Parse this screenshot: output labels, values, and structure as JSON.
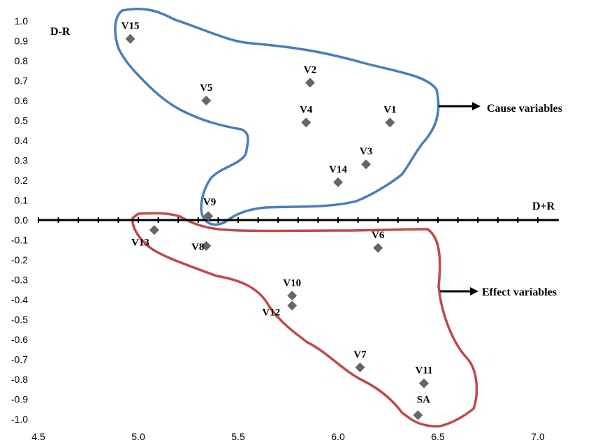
{
  "chart_data": {
    "type": "scatter",
    "xlabel": "D+R",
    "ylabel": "D-R",
    "xlim": [
      4.5,
      7.0
    ],
    "ylim": [
      -1.0,
      1.0
    ],
    "x_ticks": [
      "4.5",
      "5.0",
      "5.5",
      "6.0",
      "6.5",
      "7.0"
    ],
    "y_ticks": [
      "1.0",
      "0.9",
      "0.8",
      "0.7",
      "0.6",
      "0.5",
      "0.4",
      "0.3",
      "0.2",
      "0.1",
      "0.0",
      "-0.1",
      "-0.2",
      "-0.3",
      "-0.4",
      "-0.5",
      "-0.6",
      "-0.7",
      "-0.8",
      "-0.9",
      "-1.0"
    ],
    "points": [
      {
        "label": "V15",
        "x": 4.96,
        "y": 0.91
      },
      {
        "label": "V5",
        "x": 5.34,
        "y": 0.6
      },
      {
        "label": "V2",
        "x": 5.86,
        "y": 0.69
      },
      {
        "label": "V4",
        "x": 5.84,
        "y": 0.49
      },
      {
        "label": "V1",
        "x": 6.26,
        "y": 0.49
      },
      {
        "label": "V3",
        "x": 6.14,
        "y": 0.28
      },
      {
        "label": "V14",
        "x": 6.0,
        "y": 0.19
      },
      {
        "label": "V9",
        "x": 5.35,
        "y": 0.02
      },
      {
        "label": "V13",
        "x": 5.08,
        "y": -0.05
      },
      {
        "label": "V8",
        "x": 5.34,
        "y": -0.13
      },
      {
        "label": "V6",
        "x": 6.2,
        "y": -0.14
      },
      {
        "label": "V10",
        "x": 5.77,
        "y": -0.38
      },
      {
        "label": "V12",
        "x": 5.77,
        "y": -0.43
      },
      {
        "label": "V7",
        "x": 6.11,
        "y": -0.74
      },
      {
        "label": "V11",
        "x": 6.43,
        "y": -0.82
      },
      {
        "label": "SA",
        "x": 6.4,
        "y": -0.98
      }
    ],
    "annotations": [
      "Cause variables",
      "Effect variables"
    ],
    "colors": {
      "marker": "#666666",
      "cause_outline": "#4A7EBB",
      "effect_outline": "#BE4B48"
    },
    "grid": false,
    "legend": "none"
  }
}
